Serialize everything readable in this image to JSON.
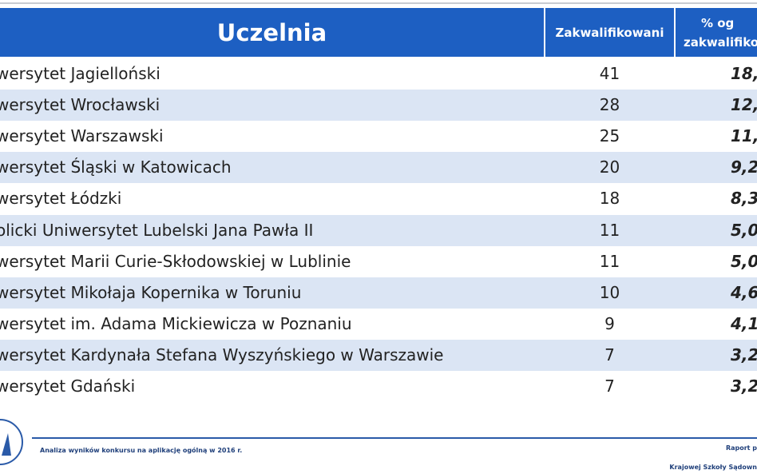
{
  "table": {
    "header": [
      "Uczelnia",
      "Zakwalifikowani",
      "% og",
      "zakwalifiko"
    ],
    "rows": [
      [
        "wersytet Jagielloński",
        41,
        "18,"
      ],
      [
        "wersytet Wrocławski",
        28,
        "12,"
      ],
      [
        "wersytet Warszawski",
        25,
        "11,"
      ],
      [
        "wersytet Śląski w Katowicach",
        20,
        "9,2"
      ],
      [
        "wersytet Łódzki",
        18,
        "8,3"
      ],
      [
        "olicki Uniwersytet Lubelski Jana Pawła II",
        11,
        "5,0"
      ],
      [
        "wersytet Marii Curie-Skłodowskiej w Lublinie",
        11,
        "5,0"
      ],
      [
        "wersytet Mikołaja Kopernika w Toruniu",
        10,
        "4,6"
      ],
      [
        "wersytet im. Adama Mickiewicza w Poznaniu",
        9,
        "4,1"
      ],
      [
        "wersytet Kardynała Stefana Wyszyńskiego w Warszawie",
        7,
        "3,2"
      ],
      [
        "wersytet Gdański",
        7,
        "3,2"
      ]
    ]
  },
  "footer": {
    "left": "Analiza wyników konkursu na aplikację ogólną w 2016 r.",
    "right": [
      "Raport p",
      "Krajowej Szkoły Sądown"
    ]
  }
}
